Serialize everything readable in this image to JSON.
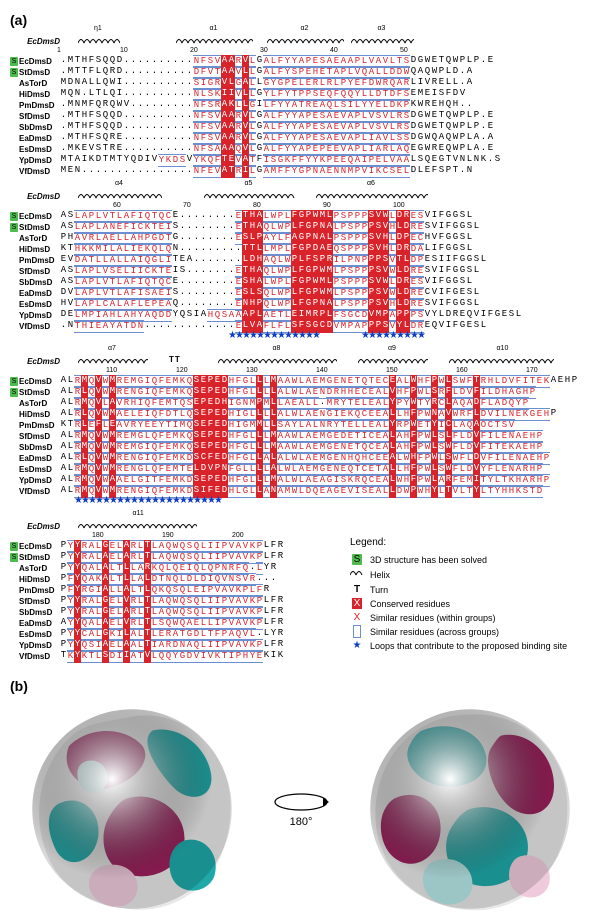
{
  "panel_a_label": "(a)",
  "panel_b_label": "(b)",
  "ref_name": "EcDmsD",
  "rotation_label": "180°",
  "legend_title": "Legend:",
  "legend_items": [
    {
      "key": "s",
      "label": "3D structure has been solved"
    },
    {
      "key": "helix",
      "label": "Helix"
    },
    {
      "key": "turn",
      "label": "Turn"
    },
    {
      "key": "cons",
      "label": "Conserved residues"
    },
    {
      "key": "simw",
      "label": "Similar residues (within groups)"
    },
    {
      "key": "sima",
      "label": "Similar residues (across groups)"
    },
    {
      "key": "star",
      "label": "Loops that contribute to the proposed binding site"
    }
  ],
  "colors": {
    "conserved_bg": "#d8232a",
    "conserved_fg": "#ffffff",
    "similar_fg": "#d8232a",
    "box_border": "#6a8ecf",
    "star": "#1040c0",
    "s_badge": "#4dbb4d",
    "surface_neg": "#1fa8a8",
    "surface_pos": "#9c1f5c",
    "surface_mid": "#e8e8e8"
  },
  "species": [
    {
      "id": "EcDmsD",
      "solved": true
    },
    {
      "id": "StDmsD",
      "solved": true
    },
    {
      "id": "AsTorD",
      "solved": false
    },
    {
      "id": "HiDmsD",
      "solved": false
    },
    {
      "id": "PmDmsD",
      "solved": false
    },
    {
      "id": "SfDmsD",
      "solved": false
    },
    {
      "id": "SbDmsD",
      "solved": false
    },
    {
      "id": "EaDmsD",
      "solved": false
    },
    {
      "id": "EsDmsD",
      "solved": false
    },
    {
      "id": "YpDmsD",
      "solved": false
    },
    {
      "id": "VfDmsD",
      "solved": false
    }
  ],
  "blocks": [
    {
      "ss": [
        {
          "type": "helix",
          "label": "η1",
          "start": 3,
          "end": 8
        },
        {
          "type": "helix",
          "label": "α1",
          "start": 17,
          "end": 27
        },
        {
          "type": "helix",
          "label": "α2",
          "start": 30,
          "end": 40
        },
        {
          "type": "helix",
          "label": "α3",
          "start": 42,
          "end": 50
        }
      ],
      "ticks": [
        1,
        10,
        20,
        30,
        40,
        50
      ],
      "len": 55,
      "rows": [
        ".MTHFSQQD..........NFSVAARVLGALFYYAPESAEAAPLVAVLTSDGWETQWPLP.E",
        ".MTTFLQRD..........DFVTAAVLLGALFYSPEHETAPLVQALLDDWQAQWPLD.A",
        "MDNALLQWI..........SIGRVLGALLGYGPELERLRLPYEFDWRQARLIVRELL.A",
        "MQN.LTLQI..........NLSKIIVLLGYLFYTPPSEQFQQYLLDTDFSEMEISFDV",
        ".MNMFQRQWV.........NFSRAKLLGILFYYATREAQLSILYYELDKPKWREHQH..",
        ".MTHFSQQD..........NFSVAARVLGALFYYAPESAEVAPLVSVLRSDGWETQWPLP.E",
        ".MTHFSQQD..........NFSVAARVLGALFYYAPESAEVAPLVSVLRSDGWETQWPLP.E",
        ".MTHFSQRE..........NFSVAARVLGALFYYAPESAEVAPLIAVLSSDGWQAQWPLA.A",
        ".MKEVSTRE..........NFSAAAQVLGALFYYAPEPEEVAPLIARLAQEGWREQWPLA.E",
        "MTAIKDTMTYQDIVYKDSVYKQFTEVATFISGKFFYYKPEEQAIPELVAALSQEGTVNLNK.S",
        "MEN................NFEVATRILGAMFFYGPNAENNMPVIKCSELDLEFSPT.N"
      ],
      "cons_cols": [
        24,
        25,
        27
      ],
      "box_ranges": [
        [
          15,
          18
        ],
        [
          20,
          28
        ],
        [
          30,
          50
        ]
      ]
    },
    {
      "ss": [
        {
          "type": "helix",
          "label": "α4",
          "start": 54,
          "end": 65
        },
        {
          "type": "helix",
          "label": "α5",
          "start": 72,
          "end": 84
        },
        {
          "type": "helix",
          "label": "α6",
          "start": 88,
          "end": 103
        }
      ],
      "ticks": [
        60,
        70,
        80,
        90,
        100
      ],
      "len": 55,
      "stars": [
        [
          76,
          88
        ],
        [
          95,
          103
        ]
      ],
      "rows": [
        "ASLAPLVTLAFIQTQCE........ETHALWPLFGPWMLPSPPPSVWLDRESVIFGGSL",
        "ASLAPLANEFICKTEIS........ETHAQLWPLFGPNALPSPPPSVHLDRESVIFGGSL",
        "PHAVRLAELLAHPGDTG........ESLPAYLFAGPNALPSPPPSVHLDPECHVFGGSL",
        "KTHKKMILALIEKQLQN.........TTLLMPLFGPDAEQSPPPSVHLDRDALIFGGSL",
        "EVDATLLALLAIQGLITEA.......LDHAQLWPLFSPRILPNPPPSVTLDPESIIFGGSL",
        "ASLAPLVSELIICKTEIS.......ETHAQLWPLFGPWMLPSPPPSVWLDRESVIFGGSL",
        "ASLAPLVTLAFIQTQCE........ESHALWPLFGPWMLPSPPPSVWLDRESVIFGGSL",
        "DVLAPLVTLAFISAEIS........ESLSQLWPLFGPWMLPSPPPSVWLDRECVIFGESL",
        "HVLAPLCALAFLEPEAQ........ENHPQLWPLFGPNALPSPPPSVHLDRESVIFGGSL",
        "DELMPIAHLAHYAQDDYQSIAHQSAAAPLAETLEIMRPLFSGCDVMPAPPPSVYLDREQVIFGESL",
        ".NTHIEAYATDN.............ELVAFLFLSFSGCDVMPAPPPSVYLDREQVIFGESL"
      ],
      "cons_cols": [
        78,
        79,
        80,
        85,
        86,
        87,
        88,
        89,
        90,
        96,
        97,
        98,
        100,
        101
      ],
      "box_ranges": [
        [
          54,
          67
        ],
        [
          73,
          103
        ]
      ]
    },
    {
      "ss": [
        {
          "type": "helix",
          "label": "α7",
          "start": 105,
          "end": 114
        },
        {
          "type": "tt",
          "label": "TT",
          "start": 118,
          "end": 119
        },
        {
          "type": "helix",
          "label": "α8",
          "start": 125,
          "end": 141
        },
        {
          "type": "helix",
          "label": "α9",
          "start": 145,
          "end": 154
        },
        {
          "type": "helix",
          "label": "α10",
          "start": 158,
          "end": 172
        }
      ],
      "ticks": [
        110,
        120,
        130,
        140,
        150,
        160,
        170
      ],
      "len": 70,
      "stars": [
        [
          105,
          125
        ]
      ],
      "rows": [
        "ALRMQVWMREMGIQFEMKQSEPEDHFGLLLMAAWLAEMGENETQTECEALWHFPWLSWFTRHLDVFITEKAEHP",
        "ALRLQVWMRENGIQFEMKQSEPEDHFGLLLLALWLAENDRHHECEALVHFPWLSRFLDVFILDHAGHP",
        "ALRMQVLAVRHIQFEMTQSEPEDHIGNMPMLLAEALL.MRYTELEALYPYWTYRCLAQADFLADQYP",
        "ALRLQVWMAELEIQFDTLQSEPEDHIGLLLLALWLAENGIEKQCEEALLHFPWNAVWRFLDVILNEKGEHP",
        "KTRLEFLEAVRYEEYTIMQSEFEDHIGMMLLSAYLALNRYTELLEALYRPWETYICLAQAOCTSV",
        "ALRMQVWMREMGLQFEMKQSEPEDHFGLLLMAAWLAEMGEDETICEALAHFPWLSLFLDVFILENAEHP",
        "ALRMQVWMREMGIQFEMKQSEPEDHFGLLLMAAWLAEMGENETQCEALAHFPWLSWFLDVFITEKAEHP",
        "ALRLQVWMRENGIQFEMKDSCFEDHFGLLALALWLAEMGENHQHCEEALWHFPWLSWFLDVFILENAEHP",
        "ALRMQVWMRENGLQFEMTELDVPNFGLLLLALWLAEMGENEQTCETALLHFPWLSWFLDVYFLENARHP",
        "ALRMQVWAAELGITFEMKDSEPEDHFGLLLMALWLAEAGISKRQCEALWHFPWLARFEMITYLTKHARHP",
        "ALRMQVWMRENGIQFEMKDSIFEDHLGLLANAMWLDQEAGEVISEALLDWPWHYLTVLTYLTYHHKSTD"
      ],
      "cons_cols": [
        106,
        108,
        110,
        122,
        123,
        124,
        125,
        126,
        131,
        133,
        150,
        153,
        156,
        158,
        162
      ],
      "box_ranges": [
        [
          105,
          172
        ]
      ]
    },
    {
      "ss": [
        {
          "type": "helix",
          "label": "α11",
          "start": 177,
          "end": 193
        }
      ],
      "ticks": [
        180,
        190,
        200
      ],
      "len": 35,
      "rows": [
        "PYYRALGELARLTLAQWQSQLIIPVAVKPLFR",
        "PYYRALAELARLTLAQWQSQLIIPVAVKPLFR",
        "PYYQALALTLLARKQLQEIQLQPNRFQ.LYR",
        "PFYQAKALTLLALDTNQLDLDIQVNSVR...",
        "PFYRGIALLALTLQKQSQLEIPVAVKPLFR",
        "PYYRALGELVRLTLAQWQSQLIIPVAVKPLFR",
        "PYYRALGELARLTLAQWQSQLIIPVAVKPLFR",
        "AYYQALAELVRLTLSQWQAELLIPVAVKPLFR",
        "PYYCALGKILALTLERATGDLTFPAQVL.LYR",
        "PYYQSIAELAALTIARDNAQLIIPVAVKPLFR",
        "TKYKTLSDIIATVLQQYGDVIVKTIPHYEKIK"
      ],
      "cons_cols": [
        177,
        181,
        184,
        187
      ],
      "box_ranges": [
        [
          176,
          203
        ]
      ]
    }
  ]
}
